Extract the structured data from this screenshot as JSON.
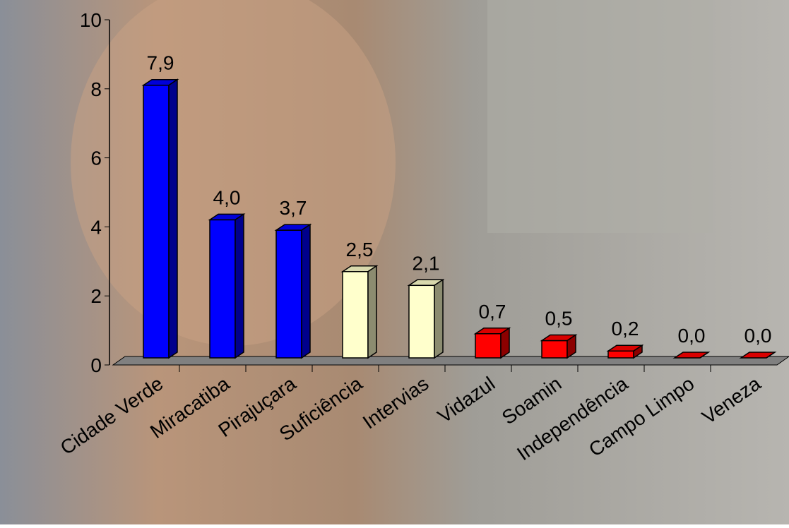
{
  "chart_data": {
    "type": "bar3d",
    "categories": [
      "Cidade Verde",
      "Miracatiba",
      "Pirajuçara",
      "Suficiência",
      "Intervias",
      "Vidazul",
      "Soamin",
      "Independência",
      "Campo Limpo",
      "Veneza"
    ],
    "values": [
      7.9,
      4.0,
      3.7,
      2.5,
      2.1,
      0.7,
      0.5,
      0.2,
      0.0,
      0.0
    ],
    "value_labels": [
      "7,9",
      "4,0",
      "3,7",
      "2,5",
      "2,1",
      "0,7",
      "0,5",
      "0,2",
      "0,0",
      "0,0"
    ],
    "colors": [
      "#0000ff",
      "#0000ff",
      "#0000ff",
      "#ffffcc",
      "#ffffcc",
      "#ff0000",
      "#ff0000",
      "#ff0000",
      "#ff0000",
      "#ff0000"
    ],
    "ylim": [
      0,
      10
    ],
    "yticks": [
      0,
      2,
      4,
      6,
      8,
      10
    ]
  }
}
